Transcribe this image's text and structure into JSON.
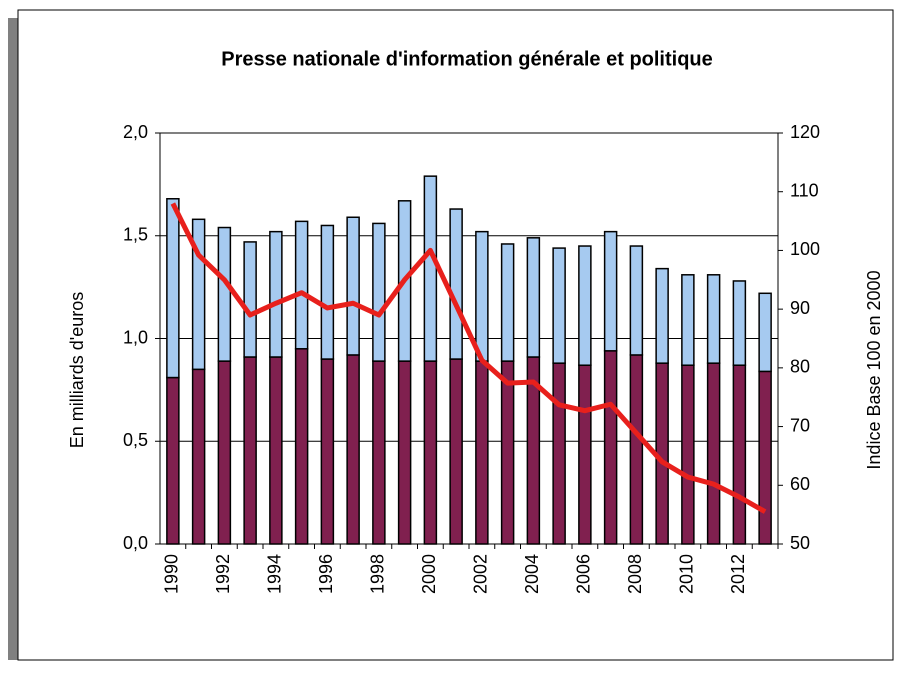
{
  "chart_data": {
    "type": "bar",
    "stacked": true,
    "title": "Presse nationale d'information générale et politique",
    "y_label": "En milliards d'euros",
    "y2_label": "Indice Base 100 en 2000",
    "categories": [
      "1990",
      null,
      "1992",
      null,
      "1994",
      null,
      "1996",
      null,
      "1998",
      null,
      "2000",
      null,
      "2002",
      null,
      "2004",
      null,
      "2006",
      null,
      "2008",
      null,
      "2010",
      null,
      "2012",
      null
    ],
    "series": [
      {
        "color": "#80204f",
        "values": [
          0.81,
          0.85,
          0.89,
          0.91,
          0.91,
          0.95,
          0.9,
          0.92,
          0.89,
          0.89,
          0.89,
          0.9,
          0.89,
          0.89,
          0.91,
          0.88,
          0.87,
          0.94,
          0.92,
          0.88,
          0.87,
          0.88,
          0.87,
          0.84
        ]
      },
      {
        "color": "#a6caf0",
        "values": [
          0.87,
          0.73,
          0.65,
          0.56,
          0.61,
          0.62,
          0.65,
          0.67,
          0.67,
          0.78,
          0.9,
          0.73,
          0.63,
          0.57,
          0.58,
          0.56,
          0.58,
          0.58,
          0.53,
          0.46,
          0.44,
          0.43,
          0.41,
          0.38
        ]
      },
      {
        "color": "#e8201c",
        "axis": "y2",
        "type": "line",
        "values": [
          108,
          99.2,
          95,
          89,
          91,
          92.8,
          90.2,
          91,
          89,
          95,
          100,
          90.7,
          81.3,
          77.4,
          77.6,
          73.7,
          72.7,
          73.8,
          68.9,
          64,
          61.4,
          60.2,
          58,
          55.5
        ]
      }
    ],
    "ylim": [
      0,
      2
    ],
    "yticks": [
      {
        "value": 0,
        "label": "0,0"
      },
      {
        "value": 0.5,
        "label": "0,5"
      },
      {
        "value": 1,
        "label": "1,0"
      },
      {
        "value": 1.5,
        "label": "1,5"
      },
      {
        "value": 2,
        "label": "2,0"
      }
    ],
    "y2lim": [
      50,
      120
    ],
    "y2ticks": [
      50,
      60,
      70,
      80,
      90,
      100,
      110,
      120
    ],
    "grid": true
  }
}
